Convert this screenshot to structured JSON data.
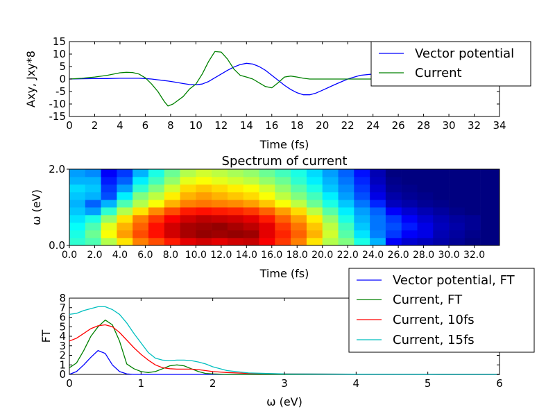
{
  "chart_data": [
    {
      "type": "line",
      "xlabel": "Time (fs)",
      "ylabel": "Axy, Jxy*8",
      "xlim": [
        0,
        34
      ],
      "ylim": [
        -15,
        15
      ],
      "xticks": [
        0,
        2,
        4,
        6,
        8,
        10,
        12,
        14,
        16,
        18,
        20,
        22,
        24,
        26,
        28,
        30,
        32,
        34
      ],
      "yticks": [
        -15,
        -10,
        -5,
        0,
        5,
        10,
        15
      ],
      "legend_position": "top-right",
      "x": [
        0,
        1,
        2,
        3,
        4,
        4.5,
        5,
        5.5,
        6,
        6.5,
        7,
        7.5,
        7.8,
        8.2,
        9,
        9.5,
        10,
        10.5,
        11,
        11.5,
        12,
        12.5,
        13,
        13.5,
        14,
        14.5,
        15,
        15.5,
        16,
        16.5,
        17,
        17.5,
        18,
        18.5,
        19,
        19.5,
        20,
        21,
        22,
        23,
        24,
        25,
        26,
        28,
        30,
        32,
        34
      ],
      "series": [
        {
          "name": "Vector potential",
          "color": "#0000ff",
          "values": [
            0,
            0.1,
            0.2,
            0.2,
            0.3,
            0.3,
            0.3,
            0.3,
            0.2,
            0,
            -0.3,
            -0.6,
            -0.8,
            -1.1,
            -1.8,
            -2.2,
            -2.3,
            -2.0,
            -1.0,
            0.5,
            2.0,
            3.5,
            4.8,
            5.8,
            6.3,
            6.0,
            5.0,
            3.5,
            1.5,
            -0.5,
            -2.5,
            -4.2,
            -5.5,
            -6.3,
            -6.3,
            -5.6,
            -4.5,
            -2.2,
            0,
            1.5,
            2.0,
            1.5,
            0.8,
            0.2,
            0,
            0,
            0
          ]
        },
        {
          "name": "Current",
          "color": "#008000",
          "values": [
            0,
            0.3,
            0.8,
            1.5,
            2.5,
            2.7,
            2.6,
            2.0,
            0.5,
            -2.0,
            -5.0,
            -9.0,
            -10.8,
            -10.0,
            -7.0,
            -4.0,
            -2.0,
            2.0,
            7.0,
            11.0,
            10.8,
            8.0,
            4.0,
            1.5,
            0.8,
            0,
            -1.5,
            -3.0,
            -3.5,
            -1.5,
            0.8,
            1.2,
            0.8,
            0.3,
            0,
            0,
            0,
            0,
            0,
            0,
            0,
            0,
            0,
            0,
            0,
            0,
            0
          ]
        }
      ]
    },
    {
      "type": "heatmap",
      "title": "Spectrum of current",
      "xlabel": "Time (fs)",
      "ylabel": "ω (eV)",
      "xlim": [
        0,
        34
      ],
      "ylim": [
        0,
        2
      ],
      "xticks": [
        "0.0",
        "2.0",
        "4.0",
        "6.0",
        "8.0",
        "10.0",
        "12.0",
        "14.0",
        "16.0",
        "18.0",
        "20.0",
        "22.0",
        "24.0",
        "26.0",
        "28.0",
        "30.0",
        "32.0"
      ],
      "yticks": [
        "0.0",
        "2.0"
      ],
      "time_columns": [
        0,
        1.25,
        2.5,
        3.75,
        5,
        6.25,
        7.5,
        8.75,
        10,
        11.25,
        12.5,
        13.75,
        15,
        16.25,
        17.5,
        18.75,
        20,
        21.25,
        22.5,
        23.75,
        25,
        26.25,
        27.5,
        28.75,
        30,
        31.25,
        32.5
      ],
      "omega_rows": [
        0.1,
        0.3,
        0.5,
        0.7,
        0.9,
        1.1,
        1.3,
        1.5,
        1.7,
        1.9
      ],
      "intensity": [
        [
          0.42,
          0.45,
          0.55,
          0.65,
          0.75,
          0.8,
          0.85,
          0.9,
          0.92,
          0.9,
          0.92,
          0.93,
          0.88,
          0.82,
          0.75,
          0.65,
          0.55,
          0.5,
          0.4,
          0.3,
          0.12,
          0.08,
          0.06,
          0.04,
          0.02,
          0.0,
          0.0
        ],
        [
          0.4,
          0.48,
          0.62,
          0.72,
          0.8,
          0.86,
          0.92,
          0.96,
          0.98,
          0.97,
          0.98,
          0.97,
          0.9,
          0.84,
          0.78,
          0.7,
          0.58,
          0.46,
          0.35,
          0.25,
          0.18,
          0.12,
          0.1,
          0.05,
          0.03,
          0.01,
          0.0
        ],
        [
          0.38,
          0.45,
          0.6,
          0.7,
          0.78,
          0.86,
          0.92,
          0.96,
          0.97,
          0.98,
          0.96,
          0.94,
          0.9,
          0.82,
          0.76,
          0.68,
          0.56,
          0.44,
          0.32,
          0.24,
          0.2,
          0.15,
          0.1,
          0.06,
          0.04,
          0.02,
          0.0
        ],
        [
          0.35,
          0.4,
          0.52,
          0.65,
          0.75,
          0.82,
          0.88,
          0.92,
          0.94,
          0.93,
          0.92,
          0.9,
          0.85,
          0.78,
          0.72,
          0.64,
          0.52,
          0.4,
          0.3,
          0.24,
          0.18,
          0.12,
          0.08,
          0.05,
          0.03,
          0.02,
          0.0
        ],
        [
          0.32,
          0.28,
          0.42,
          0.55,
          0.65,
          0.74,
          0.8,
          0.85,
          0.86,
          0.85,
          0.84,
          0.82,
          0.78,
          0.72,
          0.66,
          0.56,
          0.46,
          0.36,
          0.28,
          0.22,
          0.12,
          0.08,
          0.05,
          0.03,
          0.01,
          0.0,
          0.0
        ],
        [
          0.3,
          0.22,
          0.3,
          0.45,
          0.55,
          0.62,
          0.7,
          0.75,
          0.76,
          0.75,
          0.74,
          0.72,
          0.68,
          0.62,
          0.56,
          0.48,
          0.4,
          0.32,
          0.24,
          0.16,
          0.06,
          0.04,
          0.02,
          0.01,
          0.0,
          0.0,
          0.0
        ],
        [
          0.32,
          0.3,
          0.2,
          0.36,
          0.5,
          0.56,
          0.64,
          0.7,
          0.72,
          0.7,
          0.68,
          0.66,
          0.62,
          0.56,
          0.5,
          0.44,
          0.36,
          0.28,
          0.2,
          0.1,
          0.04,
          0.02,
          0.01,
          0.0,
          0.0,
          0.0,
          0.0
        ],
        [
          0.34,
          0.32,
          0.18,
          0.28,
          0.42,
          0.5,
          0.58,
          0.66,
          0.68,
          0.66,
          0.64,
          0.62,
          0.58,
          0.52,
          0.46,
          0.4,
          0.32,
          0.26,
          0.18,
          0.08,
          0.02,
          0.01,
          0.0,
          0.0,
          0.0,
          0.0,
          0.0
        ],
        [
          0.3,
          0.3,
          0.15,
          0.22,
          0.36,
          0.44,
          0.52,
          0.6,
          0.62,
          0.6,
          0.58,
          0.56,
          0.52,
          0.48,
          0.42,
          0.36,
          0.3,
          0.24,
          0.16,
          0.06,
          0.01,
          0.0,
          0.0,
          0.0,
          0.0,
          0.0,
          0.0
        ],
        [
          0.28,
          0.26,
          0.12,
          0.18,
          0.3,
          0.4,
          0.48,
          0.55,
          0.58,
          0.56,
          0.54,
          0.52,
          0.48,
          0.44,
          0.4,
          0.34,
          0.28,
          0.22,
          0.14,
          0.05,
          0.0,
          0.0,
          0.0,
          0.0,
          0.0,
          0.0,
          0.0
        ]
      ]
    },
    {
      "type": "line",
      "xlabel": "ω (eV)",
      "ylabel": "FT",
      "xlim": [
        0,
        6
      ],
      "ylim": [
        0,
        8
      ],
      "xticks": [
        0,
        1,
        2,
        3,
        4,
        5,
        6
      ],
      "yticks": [
        0,
        1,
        2,
        3,
        4,
        5,
        6,
        7,
        8
      ],
      "legend_position": "top-right",
      "series": [
        {
          "name": "Vector potential, FT",
          "color": "#0000ff",
          "x": [
            0,
            0.1,
            0.2,
            0.3,
            0.4,
            0.5,
            0.6,
            0.7,
            0.8,
            0.9,
            1.0,
            1.5,
            2,
            3,
            4,
            5,
            6
          ],
          "values": [
            0,
            0.3,
            1.0,
            1.8,
            2.5,
            2.2,
            1.0,
            0.3,
            0.05,
            0,
            0,
            0,
            0,
            0,
            0,
            0,
            0
          ]
        },
        {
          "name": "Current, FT",
          "color": "#008000",
          "x": [
            0,
            0.1,
            0.2,
            0.3,
            0.4,
            0.5,
            0.6,
            0.7,
            0.8,
            0.9,
            1.0,
            1.1,
            1.2,
            1.3,
            1.4,
            1.5,
            1.6,
            1.7,
            1.8,
            1.9,
            2.0,
            2.2,
            2.5,
            3,
            4,
            5,
            6
          ],
          "values": [
            0.7,
            1.2,
            2.5,
            4.0,
            5.0,
            5.7,
            5.2,
            3.5,
            1.1,
            0.6,
            0.3,
            0.2,
            0.3,
            0.6,
            0.9,
            1.0,
            0.9,
            0.6,
            0.3,
            0.1,
            0.05,
            0,
            0,
            0,
            0,
            0,
            0
          ]
        },
        {
          "name": "Current, 10fs",
          "color": "#ff0000",
          "x": [
            0,
            0.1,
            0.2,
            0.3,
            0.4,
            0.5,
            0.6,
            0.7,
            0.8,
            0.9,
            1.0,
            1.1,
            1.2,
            1.3,
            1.4,
            1.5,
            1.6,
            1.7,
            1.8,
            1.9,
            2.0,
            2.2,
            2.5,
            3,
            4,
            5,
            6
          ],
          "values": [
            3.5,
            3.8,
            4.3,
            4.8,
            5.1,
            5.2,
            5.0,
            4.4,
            3.6,
            2.8,
            2.1,
            1.5,
            1.0,
            0.7,
            0.6,
            0.55,
            0.55,
            0.55,
            0.5,
            0.4,
            0.3,
            0.2,
            0.1,
            0.05,
            0.02,
            0.01,
            0
          ]
        },
        {
          "name": "Current, 15fs",
          "color": "#00bfbf",
          "x": [
            0,
            0.1,
            0.2,
            0.3,
            0.4,
            0.5,
            0.6,
            0.7,
            0.8,
            0.9,
            1.0,
            1.1,
            1.2,
            1.3,
            1.4,
            1.5,
            1.6,
            1.7,
            1.8,
            1.9,
            2.0,
            2.2,
            2.5,
            3,
            4,
            5,
            6
          ],
          "values": [
            6.3,
            6.4,
            6.7,
            6.9,
            7.1,
            7.1,
            6.8,
            6.3,
            5.4,
            4.3,
            3.3,
            2.3,
            1.7,
            1.5,
            1.45,
            1.5,
            1.5,
            1.45,
            1.3,
            1.1,
            0.8,
            0.4,
            0.15,
            0.05,
            0.02,
            0.01,
            0
          ]
        }
      ]
    }
  ]
}
